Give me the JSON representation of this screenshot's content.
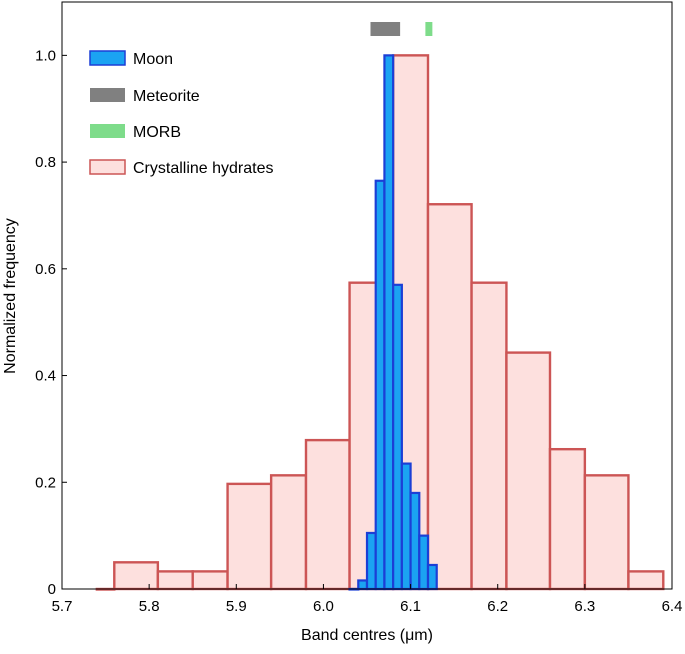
{
  "chart_data": {
    "type": "bar",
    "xlabel": "Band centres (μm)",
    "ylabel": "Normalized frequency",
    "xlim": [
      5.7,
      6.4
    ],
    "ylim": [
      0,
      1.1
    ],
    "xticks": [
      "5.7",
      "5.8",
      "5.9",
      "6.0",
      "6.1",
      "6.2",
      "6.3",
      "6.4"
    ],
    "yticks": [
      "0",
      "0.2",
      "0.4",
      "0.6",
      "0.8",
      "1.0"
    ],
    "series": [
      {
        "name": "Crystalline hydrates",
        "kind": "histogram",
        "fill": "#fde0de",
        "stroke": "#cc5555",
        "bins": [
          {
            "x0": 5.74,
            "x1": 5.76,
            "value": 0.0
          },
          {
            "x0": 5.76,
            "x1": 5.81,
            "value": 0.05
          },
          {
            "x0": 5.81,
            "x1": 5.85,
            "value": 0.033
          },
          {
            "x0": 5.85,
            "x1": 5.89,
            "value": 0.033
          },
          {
            "x0": 5.89,
            "x1": 5.94,
            "value": 0.197
          },
          {
            "x0": 5.94,
            "x1": 5.98,
            "value": 0.213
          },
          {
            "x0": 5.98,
            "x1": 6.03,
            "value": 0.279
          },
          {
            "x0": 6.03,
            "x1": 6.08,
            "value": 0.574
          },
          {
            "x0": 6.08,
            "x1": 6.12,
            "value": 1.0
          },
          {
            "x0": 6.12,
            "x1": 6.17,
            "value": 0.721
          },
          {
            "x0": 6.17,
            "x1": 6.21,
            "value": 0.574
          },
          {
            "x0": 6.21,
            "x1": 6.26,
            "value": 0.443
          },
          {
            "x0": 6.26,
            "x1": 6.3,
            "value": 0.262
          },
          {
            "x0": 6.3,
            "x1": 6.35,
            "value": 0.213
          },
          {
            "x0": 6.35,
            "x1": 6.39,
            "value": 0.033
          }
        ]
      },
      {
        "name": "Moon",
        "kind": "histogram",
        "fill": "#1ba3f2",
        "stroke": "#1c3fd6",
        "bins": [
          {
            "x0": 6.03,
            "x1": 6.04,
            "value": 0.0
          },
          {
            "x0": 6.04,
            "x1": 6.05,
            "value": 0.016
          },
          {
            "x0": 6.05,
            "x1": 6.06,
            "value": 0.105
          },
          {
            "x0": 6.06,
            "x1": 6.07,
            "value": 0.765
          },
          {
            "x0": 6.07,
            "x1": 6.08,
            "value": 1.0
          },
          {
            "x0": 6.08,
            "x1": 6.09,
            "value": 0.57
          },
          {
            "x0": 6.09,
            "x1": 6.1,
            "value": 0.235
          },
          {
            "x0": 6.1,
            "x1": 6.11,
            "value": 0.18
          },
          {
            "x0": 6.11,
            "x1": 6.12,
            "value": 0.1
          },
          {
            "x0": 6.12,
            "x1": 6.13,
            "value": 0.045
          }
        ]
      },
      {
        "name": "Meteorite",
        "kind": "range",
        "color": "#808080",
        "x0": 6.054,
        "x1": 6.088
      },
      {
        "name": "MORB",
        "kind": "range",
        "color": "#7edc8a",
        "x0": 6.117,
        "x1": 6.125
      }
    ],
    "legend": {
      "placement": "top-left",
      "entries": [
        "Moon",
        "Meteorite",
        "MORB",
        "Crystalline hydrates"
      ]
    },
    "grid": false
  }
}
